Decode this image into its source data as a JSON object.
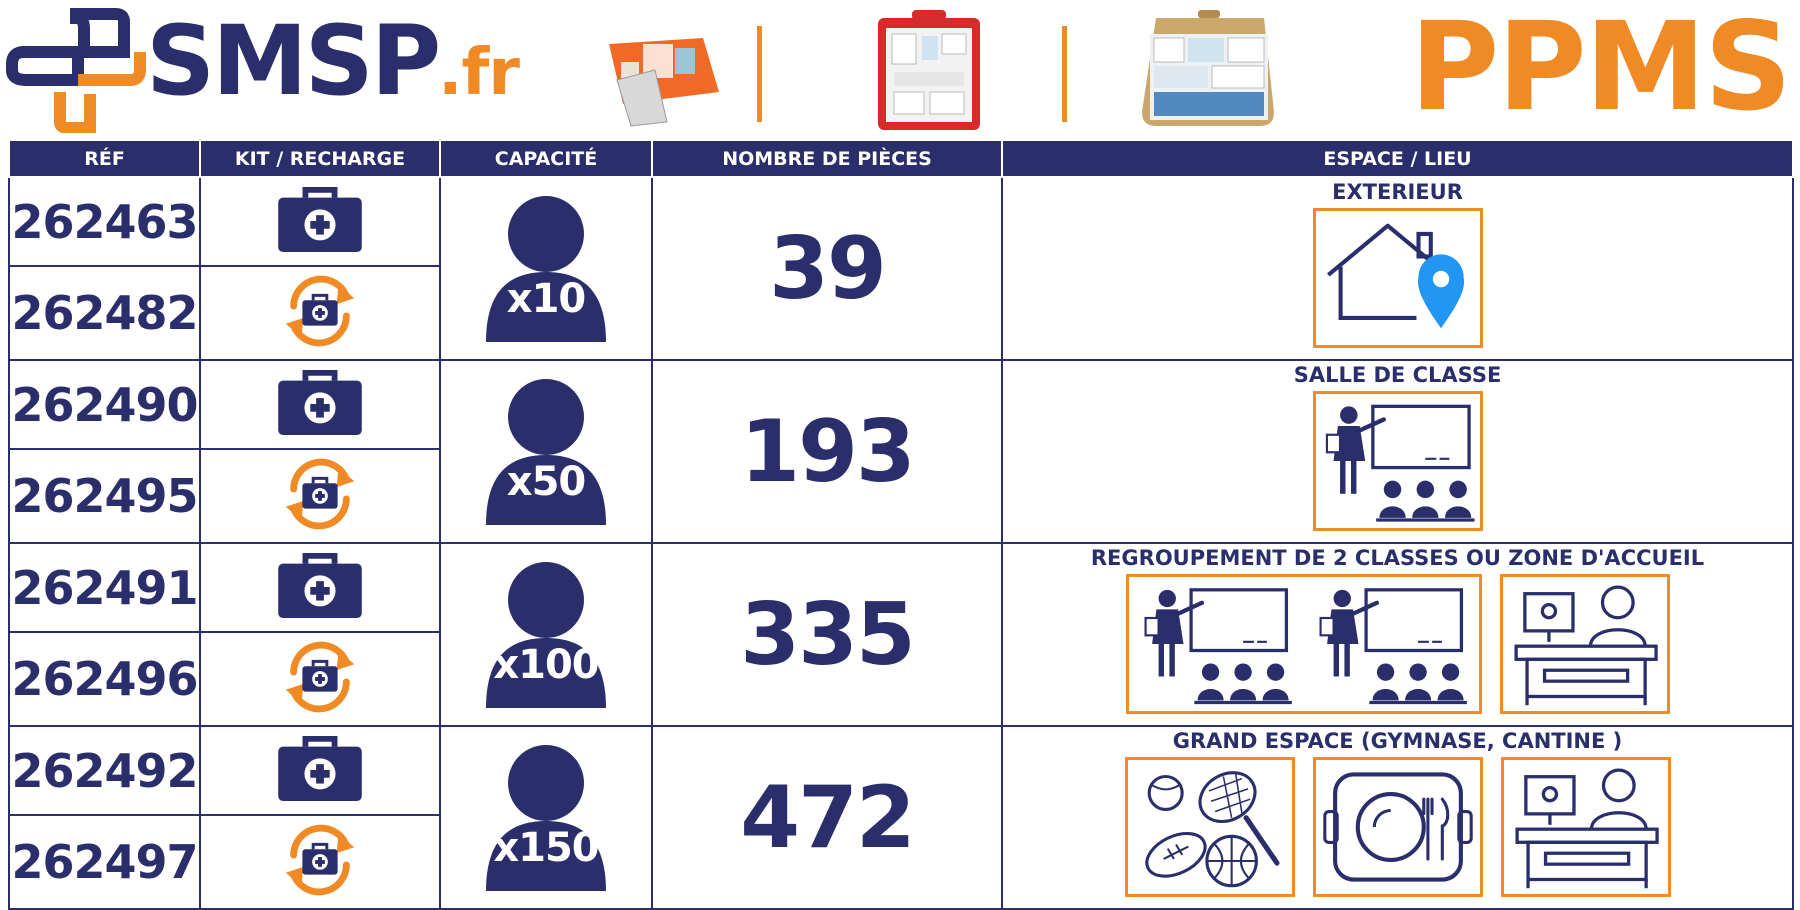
{
  "header": {
    "logo_main": "SMSP",
    "logo_suffix": ".fr",
    "right_title": "PPMS"
  },
  "table": {
    "headers": [
      "RÉF",
      "KIT / RECHARGE",
      "CAPACITÉ",
      "NOMBRE DE PIÈCES",
      "ESPACE / LIEU"
    ],
    "groups": [
      {
        "ref_kit": "262463",
        "ref_recharge": "262482",
        "capacity": "x10",
        "pieces": "39",
        "lieu": "EXTERIEUR",
        "icons": [
          "house-location-icon"
        ]
      },
      {
        "ref_kit": "262490",
        "ref_recharge": "262495",
        "capacity": "x50",
        "pieces": "193",
        "lieu": "SALLE DE CLASSE",
        "icons": [
          "classroom-icon"
        ]
      },
      {
        "ref_kit": "262491",
        "ref_recharge": "262496",
        "capacity": "x100",
        "pieces": "335",
        "lieu": "REGROUPEMENT DE 2 CLASSES OU ZONE D'ACCUEIL",
        "icons": [
          "classroom-icon",
          "classroom-icon",
          "reception-desk-icon"
        ]
      },
      {
        "ref_kit": "262492",
        "ref_recharge": "262497",
        "capacity": "x150",
        "pieces": "472",
        "lieu": "GRAND ESPACE (GYMNASE, CANTINE )",
        "icons": [
          "sports-balls-icon",
          "canteen-tray-icon",
          "reception-desk-icon"
        ]
      }
    ]
  },
  "colors": {
    "navy": "#2a2f6b",
    "orange": "#f08a24",
    "pin_blue": "#2196f3"
  }
}
